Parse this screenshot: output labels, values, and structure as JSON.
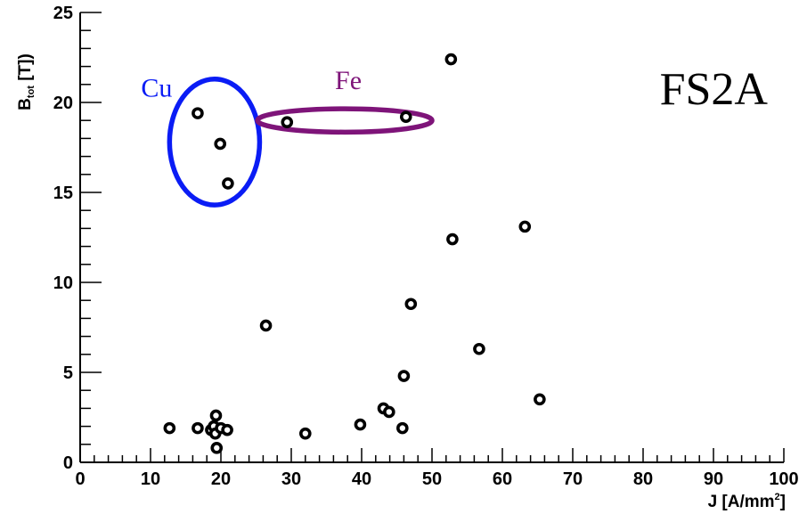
{
  "chart_data": {
    "type": "scatter",
    "title": "FS2A",
    "xlabel": {
      "main": "J [A/mm",
      "sup": "2",
      "tail": "]"
    },
    "ylabel": {
      "main": "B",
      "sub": "tot",
      "tail": " [T])"
    },
    "xlim": [
      0,
      100
    ],
    "ylim": [
      0,
      25
    ],
    "x_ticks": [
      "0",
      "10",
      "20",
      "30",
      "40",
      "50",
      "60",
      "70",
      "80",
      "90",
      "100"
    ],
    "y_ticks": [
      "0",
      "5",
      "10",
      "15",
      "20",
      "25"
    ],
    "grid": false,
    "points": [
      {
        "x": 12.7,
        "y": 1.9
      },
      {
        "x": 16.7,
        "y": 1.9
      },
      {
        "x": 18.6,
        "y": 1.8
      },
      {
        "x": 19.0,
        "y": 2.0
      },
      {
        "x": 19.2,
        "y": 1.6
      },
      {
        "x": 19.3,
        "y": 2.6
      },
      {
        "x": 19.4,
        "y": 0.8
      },
      {
        "x": 20.0,
        "y": 1.9
      },
      {
        "x": 20.9,
        "y": 1.8
      },
      {
        "x": 16.7,
        "y": 19.4
      },
      {
        "x": 19.9,
        "y": 17.7
      },
      {
        "x": 21.0,
        "y": 15.5
      },
      {
        "x": 26.4,
        "y": 7.6
      },
      {
        "x": 29.4,
        "y": 18.9
      },
      {
        "x": 32.0,
        "y": 1.6
      },
      {
        "x": 39.8,
        "y": 2.1
      },
      {
        "x": 43.1,
        "y": 3.0
      },
      {
        "x": 43.9,
        "y": 2.8
      },
      {
        "x": 45.8,
        "y": 1.9
      },
      {
        "x": 46.0,
        "y": 4.8
      },
      {
        "x": 46.3,
        "y": 19.2
      },
      {
        "x": 47.0,
        "y": 8.8
      },
      {
        "x": 52.7,
        "y": 22.4
      },
      {
        "x": 52.9,
        "y": 12.4
      },
      {
        "x": 56.7,
        "y": 6.3
      },
      {
        "x": 63.2,
        "y": 13.1
      },
      {
        "x": 65.3,
        "y": 3.5
      }
    ],
    "annotations": [
      {
        "label": "Cu",
        "color": "#0a1cf5",
        "ellipse": {
          "cx": 19.1,
          "cy": 17.8,
          "rx": 6.4,
          "ry": 3.5
        }
      },
      {
        "label": "Fe",
        "color": "#7e1479",
        "ellipse": {
          "cx": 37.6,
          "cy": 19.0,
          "rx": 12.4,
          "ry": 0.65
        }
      }
    ],
    "colors": {
      "points": "#000000",
      "axes": "#000000"
    }
  }
}
